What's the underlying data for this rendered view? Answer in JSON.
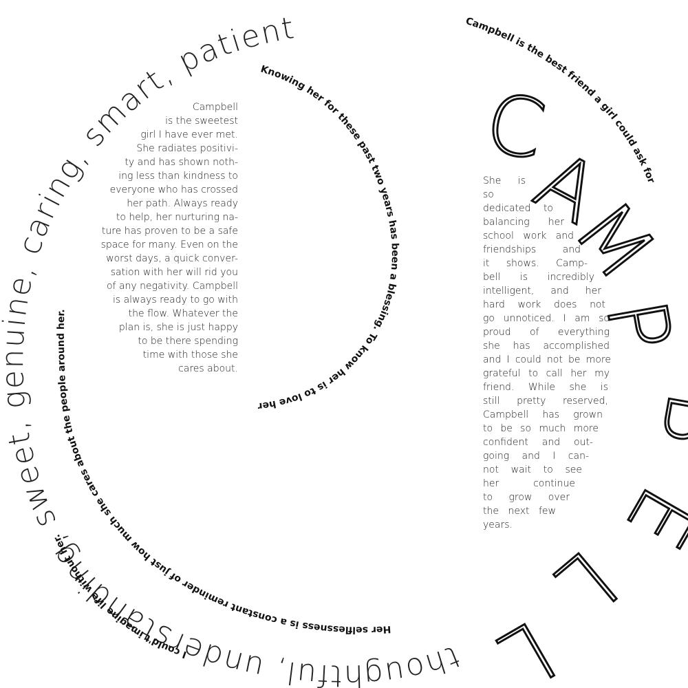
{
  "spiral": {
    "outer_bold": "Campbell is the best friend a girl could ask for",
    "inner_bold": "Knowing her for these past two years has been a blessing. To know her is to love her.",
    "bottom_bold": "Her selflessness is a constant reminder of just how much she cares about the people around her.",
    "left_bold": "I could't imagine life without her.",
    "thin_words": "thoughtful, understanding, sweet, genuine, caring, smart, patient"
  },
  "title": {
    "letters": [
      "C",
      "A",
      "M",
      "P",
      "B",
      "E",
      "L",
      "L"
    ]
  },
  "left_paragraph": {
    "lines": [
      "Campbell",
      "is the sweetest",
      "girl I have ever met.",
      "She radiates positivi-",
      "ty and has shown noth-",
      "ing less than kindness to",
      "everyone who has crossed",
      "her path. Always ready",
      "to help, her nurturing na-",
      "ture has proven to be a safe",
      "space for many. Even on the",
      "worst days, a quick conver-",
      "sation with her will rid you",
      "of any negativity. Campbell",
      "is always ready to go with",
      "the flow. Whatever the",
      "plan is, she is just happy",
      "to be there spending",
      "time with those she",
      "cares about."
    ]
  },
  "right_paragraph": {
    "lines": [
      "She is so",
      "dedicated to",
      "balancing her",
      "school work and",
      "friendships and",
      "it shows. Camp-",
      "bell is incredibly",
      "intelligent, and her",
      "hard work does not",
      "go unnoticed. I am so",
      "proud of everything",
      "she has accomplished",
      "and I could not be more",
      "grateful to call her my",
      "friend. While she is",
      "still pretty reserved,",
      "Campbell has grown",
      "to be so much more",
      "confident and out-",
      "going and I can-",
      "not wait to see",
      "her continue",
      "to grow over",
      "the next few",
      "years."
    ]
  }
}
